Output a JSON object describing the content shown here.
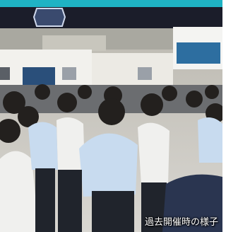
{
  "caption": "過去開催時の様子"
}
